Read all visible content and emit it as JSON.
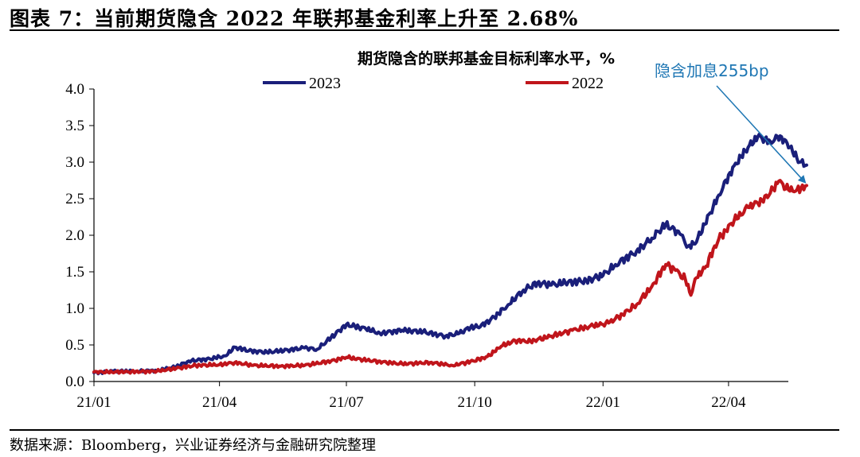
{
  "figure": {
    "title": "图表 7：当前期货隐含 2022 年联邦基金利率上升至 2.68%",
    "source": "数据来源：Bloomberg，兴业证券经济与金融研究院整理"
  },
  "chart_data": {
    "type": "line",
    "title": "期货隐含的联邦基金目标利率水平，%",
    "xlabel": "",
    "ylabel": "",
    "ylim": [
      0,
      4
    ],
    "yticks": [
      "0.0",
      "0.5",
      "1.0",
      "1.5",
      "2.0",
      "2.5",
      "3.0",
      "3.5",
      "4.0"
    ],
    "xlim": [
      "2021-01-01",
      "2022-05-31"
    ],
    "xticks": [
      {
        "date": "2021-01-01",
        "label": "21/01"
      },
      {
        "date": "2021-04-01",
        "label": "21/04"
      },
      {
        "date": "2021-07-01",
        "label": "21/07"
      },
      {
        "date": "2021-10-01",
        "label": "21/10"
      },
      {
        "date": "2022-01-01",
        "label": "22/01"
      },
      {
        "date": "2022-04-01",
        "label": "22/04"
      }
    ],
    "grid": false,
    "legend_position": "top",
    "series": [
      {
        "name": "2023",
        "color": "#1a1f7a",
        "points": [
          [
            "2021-01-01",
            0.12
          ],
          [
            "2021-01-15",
            0.14
          ],
          [
            "2021-02-01",
            0.14
          ],
          [
            "2021-02-15",
            0.15
          ],
          [
            "2021-03-01",
            0.2
          ],
          [
            "2021-03-10",
            0.28
          ],
          [
            "2021-03-25",
            0.31
          ],
          [
            "2021-04-05",
            0.35
          ],
          [
            "2021-04-12",
            0.47
          ],
          [
            "2021-04-22",
            0.42
          ],
          [
            "2021-05-05",
            0.4
          ],
          [
            "2021-05-20",
            0.43
          ],
          [
            "2021-06-01",
            0.46
          ],
          [
            "2021-06-10",
            0.44
          ],
          [
            "2021-06-20",
            0.6
          ],
          [
            "2021-07-01",
            0.78
          ],
          [
            "2021-07-15",
            0.72
          ],
          [
            "2021-07-25",
            0.66
          ],
          [
            "2021-08-10",
            0.7
          ],
          [
            "2021-08-25",
            0.68
          ],
          [
            "2021-09-10",
            0.62
          ],
          [
            "2021-09-20",
            0.66
          ],
          [
            "2021-09-28",
            0.74
          ],
          [
            "2021-10-05",
            0.75
          ],
          [
            "2021-10-15",
            0.88
          ],
          [
            "2021-10-25",
            1.05
          ],
          [
            "2021-11-05",
            1.25
          ],
          [
            "2021-11-15",
            1.35
          ],
          [
            "2021-11-25",
            1.32
          ],
          [
            "2021-12-05",
            1.35
          ],
          [
            "2021-12-20",
            1.38
          ],
          [
            "2022-01-01",
            1.45
          ],
          [
            "2022-01-10",
            1.6
          ],
          [
            "2022-01-25",
            1.78
          ],
          [
            "2022-02-05",
            1.96
          ],
          [
            "2022-02-15",
            2.15
          ],
          [
            "2022-02-25",
            2.02
          ],
          [
            "2022-03-03",
            1.85
          ],
          [
            "2022-03-08",
            1.88
          ],
          [
            "2022-03-15",
            2.15
          ],
          [
            "2022-03-25",
            2.55
          ],
          [
            "2022-04-05",
            2.95
          ],
          [
            "2022-04-15",
            3.2
          ],
          [
            "2022-04-22",
            3.35
          ],
          [
            "2022-05-01",
            3.28
          ],
          [
            "2022-05-08",
            3.36
          ],
          [
            "2022-05-15",
            3.2
          ],
          [
            "2022-05-22",
            3.0
          ],
          [
            "2022-05-27",
            2.96
          ]
        ]
      },
      {
        "name": "2022",
        "color": "#c0151b",
        "points": [
          [
            "2021-01-01",
            0.13
          ],
          [
            "2021-01-20",
            0.13
          ],
          [
            "2021-02-15",
            0.14
          ],
          [
            "2021-03-01",
            0.18
          ],
          [
            "2021-03-15",
            0.22
          ],
          [
            "2021-04-01",
            0.23
          ],
          [
            "2021-04-12",
            0.26
          ],
          [
            "2021-04-25",
            0.22
          ],
          [
            "2021-05-15",
            0.21
          ],
          [
            "2021-06-01",
            0.22
          ],
          [
            "2021-06-20",
            0.28
          ],
          [
            "2021-07-01",
            0.33
          ],
          [
            "2021-07-20",
            0.28
          ],
          [
            "2021-08-10",
            0.24
          ],
          [
            "2021-08-30",
            0.26
          ],
          [
            "2021-09-15",
            0.22
          ],
          [
            "2021-09-30",
            0.28
          ],
          [
            "2021-10-10",
            0.34
          ],
          [
            "2021-10-20",
            0.48
          ],
          [
            "2021-10-30",
            0.56
          ],
          [
            "2021-11-10",
            0.55
          ],
          [
            "2021-11-25",
            0.62
          ],
          [
            "2021-12-10",
            0.7
          ],
          [
            "2021-12-25",
            0.76
          ],
          [
            "2022-01-05",
            0.8
          ],
          [
            "2022-01-15",
            0.92
          ],
          [
            "2022-01-25",
            1.05
          ],
          [
            "2022-02-05",
            1.3
          ],
          [
            "2022-02-15",
            1.6
          ],
          [
            "2022-02-22",
            1.52
          ],
          [
            "2022-03-01",
            1.4
          ],
          [
            "2022-03-05",
            1.18
          ],
          [
            "2022-03-09",
            1.42
          ],
          [
            "2022-03-15",
            1.55
          ],
          [
            "2022-03-25",
            1.95
          ],
          [
            "2022-04-05",
            2.2
          ],
          [
            "2022-04-15",
            2.38
          ],
          [
            "2022-04-25",
            2.48
          ],
          [
            "2022-05-01",
            2.58
          ],
          [
            "2022-05-07",
            2.74
          ],
          [
            "2022-05-14",
            2.62
          ],
          [
            "2022-05-20",
            2.62
          ],
          [
            "2022-05-27",
            2.68
          ]
        ]
      }
    ],
    "annotation": {
      "text": "隐含加息255bp",
      "color": "#1f77b4",
      "target_date": "2022-05-27",
      "target_value": 2.68
    }
  }
}
